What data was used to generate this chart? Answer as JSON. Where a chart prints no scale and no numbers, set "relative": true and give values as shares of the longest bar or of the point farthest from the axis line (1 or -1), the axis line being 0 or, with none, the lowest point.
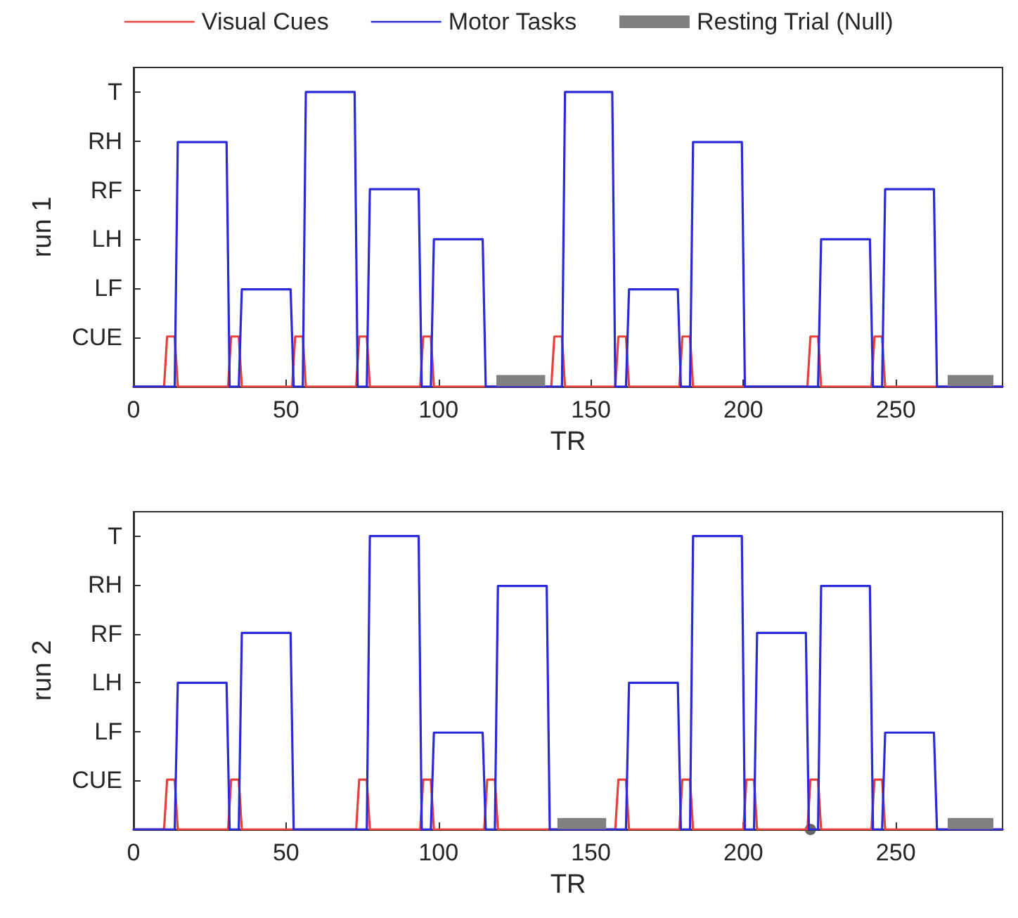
{
  "chart_data": [
    {
      "type": "line",
      "relative": true,
      "xlabel": "TR",
      "ylabel": "run 1",
      "xlim": [
        0,
        285
      ],
      "xticks": [
        0,
        50,
        100,
        150,
        200,
        250
      ],
      "annotations": [
        "CUE",
        "LF",
        "LH",
        "RF",
        "RH",
        "T"
      ],
      "grid": false,
      "legend": "top",
      "marker": "none",
      "line_style": "solid",
      "series": [
        {
          "name": "Visual Cues",
          "color": "#e8403a",
          "x": [
            0,
            10,
            11,
            13.5,
            14.5,
            31,
            32,
            34.5,
            35.5,
            52,
            53,
            55.5,
            56.5,
            73,
            74,
            76.5,
            77.5,
            94,
            95,
            97.5,
            98.5,
            137,
            138,
            140.5,
            141.5,
            158,
            159,
            161.5,
            162.5,
            179,
            180,
            182.5,
            183.5,
            221,
            222,
            224.5,
            225.5,
            242,
            243,
            245.5,
            246.5,
            285
          ],
          "values": [
            0,
            0,
            0.17,
            0.17,
            0,
            0,
            0.17,
            0.17,
            0,
            0,
            0.17,
            0.17,
            0,
            0,
            0.17,
            0.17,
            0,
            0,
            0.17,
            0.17,
            0,
            0,
            0.17,
            0.17,
            0,
            0,
            0.17,
            0.17,
            0,
            0,
            0.17,
            0.17,
            0,
            0,
            0.17,
            0.17,
            0,
            0,
            0.17,
            0.17,
            0,
            0
          ]
        },
        {
          "name": "Motor Tasks",
          "color": "#2a2ad8",
          "x": [
            0,
            13.5,
            14.5,
            30.5,
            31.5,
            34.5,
            35.5,
            51.5,
            52.5,
            55.5,
            56.5,
            72.5,
            73.5,
            76.5,
            77.5,
            93.5,
            94.5,
            97.5,
            98.5,
            114.5,
            115.5,
            140.5,
            141.5,
            157,
            158,
            161.5,
            162.5,
            178.5,
            179.5,
            182.5,
            183.5,
            199.5,
            200.5,
            224.5,
            225.5,
            241.5,
            242.5,
            245.5,
            246.5,
            262.5,
            263.5,
            285
          ],
          "values": [
            0,
            0,
            0.83,
            0.83,
            0,
            0,
            0.33,
            0.33,
            0,
            0,
            1,
            1,
            0,
            0,
            0.67,
            0.67,
            0,
            0,
            0.5,
            0.5,
            0,
            0,
            1,
            1,
            0,
            0,
            0.33,
            0.33,
            0,
            0,
            0.83,
            0.83,
            0,
            0,
            0.5,
            0.5,
            0,
            0,
            0.67,
            0.67,
            0,
            0
          ]
        },
        {
          "name": "Resting Trial (Null)",
          "color": "#808080",
          "x": [
            119,
            135,
            200,
            267,
            282
          ],
          "values": [
            0.02,
            0.02,
            null,
            0.02,
            0.02
          ]
        }
      ]
    },
    {
      "type": "line",
      "relative": true,
      "xlabel": "TR",
      "ylabel": "run 2",
      "xlim": [
        0,
        285
      ],
      "xticks": [
        0,
        50,
        100,
        150,
        200,
        250
      ],
      "annotations": [
        "CUE",
        "LF",
        "LH",
        "RF",
        "RH",
        "T"
      ],
      "grid": false,
      "marker": "none",
      "line_style": "solid",
      "series": [
        {
          "color": "#e8403a",
          "x": [
            0,
            10,
            11,
            13.5,
            14.5,
            31,
            32,
            34.5,
            35.5,
            73,
            74,
            76.5,
            77.5,
            94,
            95,
            97.5,
            98.5,
            115,
            116,
            118.5,
            119.5,
            158,
            159,
            161.5,
            162.5,
            179,
            180,
            182.5,
            183.5,
            200,
            201,
            203.5,
            204.5,
            221,
            222,
            224.5,
            225.5,
            242,
            243,
            245.5,
            246.5,
            285
          ],
          "values": [
            0,
            0,
            0.17,
            0.17,
            0,
            0,
            0.17,
            0.17,
            0,
            0,
            0.17,
            0.17,
            0,
            0,
            0.17,
            0.17,
            0,
            0,
            0.17,
            0.17,
            0,
            0,
            0.17,
            0.17,
            0,
            0,
            0.17,
            0.17,
            0,
            0,
            0.17,
            0.17,
            0,
            0,
            0.17,
            0.17,
            0,
            0,
            0.17,
            0.17,
            0,
            0
          ]
        },
        {
          "color": "#2a2ad8",
          "x": [
            0,
            13.5,
            14.5,
            30.5,
            31.5,
            34.5,
            35.5,
            51.5,
            52.5,
            76.5,
            77.5,
            93.5,
            94.5,
            97.5,
            98.5,
            114.5,
            115.5,
            118.5,
            119.5,
            135.5,
            136.5,
            161.5,
            162.5,
            178.5,
            179.5,
            182.5,
            183.5,
            199.5,
            200.5,
            203.5,
            204.5,
            220.5,
            221.5,
            224.5,
            225.5,
            241.5,
            242.5,
            245.5,
            246.5,
            262.5,
            263.5,
            285
          ],
          "values": [
            0,
            0,
            0.5,
            0.5,
            0,
            0,
            0.67,
            0.67,
            0,
            0,
            1,
            1,
            0,
            0,
            0.33,
            0.33,
            0,
            0,
            0.83,
            0.83,
            0,
            0,
            0.5,
            0.5,
            0,
            0,
            1,
            1,
            0,
            0,
            0.67,
            0.67,
            0,
            0,
            0.83,
            0.83,
            0,
            0,
            0.33,
            0.33,
            0,
            0
          ]
        },
        {
          "color": "#808080",
          "x": [
            139,
            155,
            200,
            267,
            282
          ],
          "values": [
            0.02,
            0.02,
            null,
            0.02,
            0.02
          ]
        },
        {
          "type": "scatter",
          "color": "#404040",
          "x": [
            222
          ],
          "values": [
            0
          ],
          "marker": "circle"
        }
      ]
    }
  ]
}
